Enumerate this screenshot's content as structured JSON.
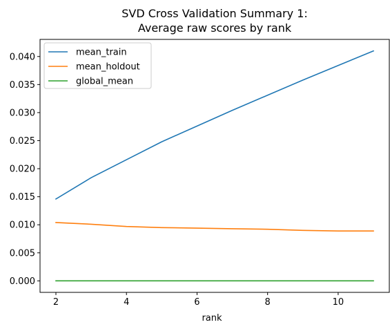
{
  "chart_data": {
    "type": "line",
    "title_line1": "SVD Cross Validation Summary 1:",
    "title_line2": "Average raw scores by rank",
    "xlabel": "rank",
    "ylabel": "",
    "xlim": [
      1.55,
      11.45
    ],
    "ylim": [
      -0.00205,
      0.04305
    ],
    "xticks": [
      2,
      4,
      6,
      8,
      10
    ],
    "xtick_labels": [
      "2",
      "4",
      "6",
      "8",
      "10"
    ],
    "yticks": [
      0,
      0.005,
      0.01,
      0.015,
      0.02,
      0.025,
      0.03,
      0.035,
      0.04
    ],
    "ytick_labels": [
      "0.000",
      "0.005",
      "0.010",
      "0.015",
      "0.020",
      "0.025",
      "0.030",
      "0.035",
      "0.040"
    ],
    "grid": false,
    "legend_position": "top-left",
    "x": [
      2,
      3,
      4,
      5,
      6,
      7,
      8,
      9,
      10,
      11
    ],
    "series": [
      {
        "name": "mean_train",
        "color": "#1f77b4",
        "values": [
          0.0146,
          0.0184,
          0.0216,
          0.0248,
          0.0276,
          0.0304,
          0.0331,
          0.0358,
          0.0384,
          0.041
        ]
      },
      {
        "name": "mean_holdout",
        "color": "#ff7f0e",
        "values": [
          0.0104,
          0.0101,
          0.0097,
          0.0095,
          0.0094,
          0.0093,
          0.0092,
          0.009,
          0.0089,
          0.0089
        ]
      },
      {
        "name": "global_mean",
        "color": "#2ca02c",
        "values": [
          0,
          0,
          0,
          0,
          0,
          0,
          0,
          0,
          0,
          0
        ]
      }
    ]
  }
}
